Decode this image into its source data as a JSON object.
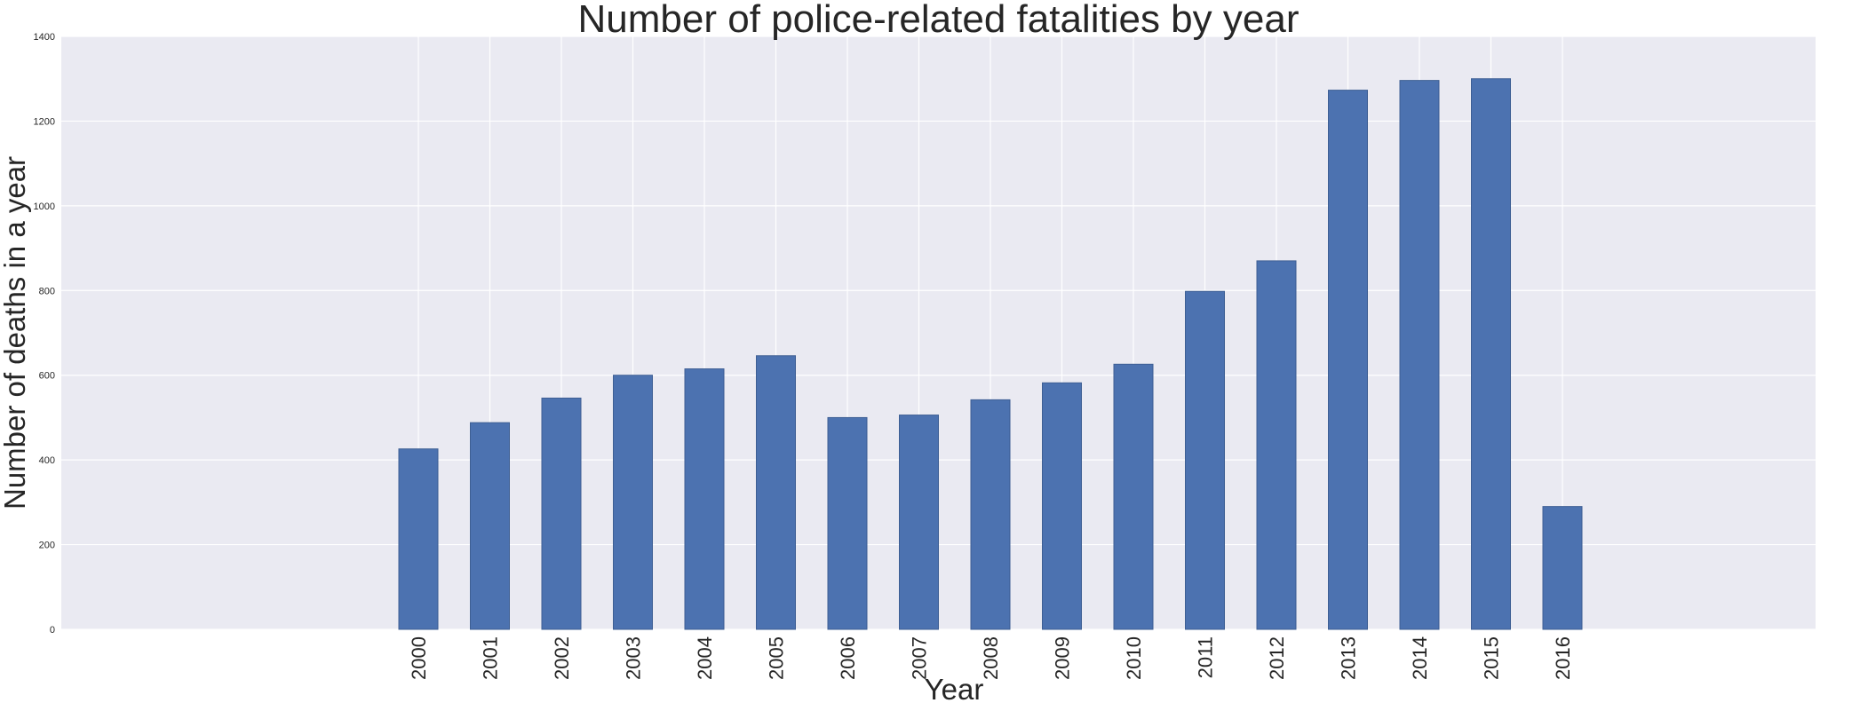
{
  "chart_data": {
    "type": "bar",
    "title": "Number of police-related fatalities by year",
    "xlabel": "Year",
    "ylabel": "Number of deaths in a year",
    "categories": [
      "2000",
      "2001",
      "2002",
      "2003",
      "2004",
      "2005",
      "2006",
      "2007",
      "2008",
      "2009",
      "2010",
      "2011",
      "2012",
      "2013",
      "2014",
      "2015",
      "2016"
    ],
    "values": [
      426,
      488,
      546,
      600,
      615,
      646,
      500,
      506,
      542,
      582,
      626,
      798,
      870,
      1273,
      1296,
      1300,
      290
    ],
    "ylim": [
      0,
      1400
    ],
    "yticks": [
      0,
      200,
      400,
      600,
      800,
      1000,
      1200,
      1400
    ],
    "grid": true,
    "bar_color": "#4c72b0",
    "background_color": "#eaeaf2",
    "grid_color": "#ffffff"
  }
}
